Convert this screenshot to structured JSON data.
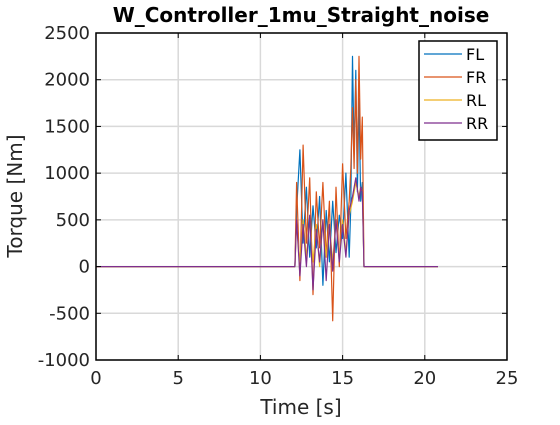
{
  "chart_data": {
    "type": "line",
    "title": "W_Controller_1mu_Straight_noise",
    "xlabel": "Time [s]",
    "ylabel": "Torque [Nm]",
    "xlim": [
      0,
      25
    ],
    "ylim": [
      -1000,
      2500
    ],
    "xticks": [
      0,
      5,
      10,
      15,
      20,
      25
    ],
    "yticks": [
      -1000,
      -500,
      0,
      500,
      1000,
      1500,
      2000,
      2500
    ],
    "xtick_labels": [
      "0",
      "5",
      "10",
      "15",
      "20",
      "25"
    ],
    "ytick_labels": [
      "-1000",
      "-500",
      "0",
      "500",
      "1000",
      "1500",
      "2000",
      "2500"
    ],
    "grid": true,
    "legend_position": "top-right",
    "series": [
      {
        "name": "FL",
        "color": "#0072BD",
        "x": [
          0,
          12.1,
          12.2,
          12.4,
          12.6,
          12.8,
          13.0,
          13.2,
          13.4,
          13.6,
          13.8,
          14.0,
          14.2,
          14.4,
          14.6,
          14.8,
          15.0,
          15.2,
          15.4,
          15.5,
          15.6,
          15.7,
          15.8,
          15.9,
          16.0,
          16.1,
          16.2,
          16.3,
          20.8
        ],
        "y": [
          0,
          0,
          600,
          1250,
          250,
          850,
          100,
          650,
          200,
          750,
          -200,
          600,
          50,
          700,
          150,
          550,
          300,
          1000,
          100,
          650,
          2250,
          1200,
          2100,
          800,
          1800,
          700,
          900,
          0,
          0
        ]
      },
      {
        "name": "FR",
        "color": "#D95319",
        "x": [
          0,
          12.1,
          12.2,
          12.4,
          12.6,
          12.8,
          13.0,
          13.2,
          13.4,
          13.6,
          13.8,
          14.0,
          14.2,
          14.4,
          14.6,
          14.8,
          15.0,
          15.2,
          15.4,
          15.5,
          15.6,
          15.7,
          15.8,
          15.9,
          16.0,
          16.1,
          16.2,
          16.3,
          20.8
        ],
        "y": [
          0,
          0,
          900,
          -150,
          1300,
          250,
          950,
          -300,
          800,
          200,
          900,
          100,
          700,
          -580,
          850,
          0,
          1100,
          300,
          700,
          1050,
          1700,
          1050,
          2000,
          1000,
          2250,
          1150,
          1600,
          0,
          0
        ]
      },
      {
        "name": "RL",
        "color": "#EDB120",
        "x": [
          0,
          12.1,
          12.2,
          12.4,
          12.6,
          12.8,
          13.0,
          13.2,
          13.4,
          13.6,
          13.8,
          14.0,
          14.2,
          14.4,
          14.6,
          14.8,
          15.0,
          15.2,
          15.4,
          15.6,
          15.8,
          16.0,
          16.1,
          16.2,
          16.3,
          20.8
        ],
        "y": [
          0,
          0,
          450,
          50,
          500,
          100,
          500,
          50,
          450,
          0,
          500,
          100,
          450,
          50,
          500,
          100,
          500,
          150,
          550,
          700,
          900,
          750,
          850,
          800,
          0,
          0
        ]
      },
      {
        "name": "RR",
        "color": "#7E2F8E",
        "x": [
          0,
          12.1,
          12.2,
          12.4,
          12.6,
          12.8,
          13.0,
          13.2,
          13.4,
          13.6,
          13.8,
          14.0,
          14.2,
          14.4,
          14.6,
          14.8,
          15.0,
          15.2,
          15.4,
          15.6,
          15.8,
          16.0,
          16.1,
          16.2,
          16.3,
          20.8
        ],
        "y": [
          0,
          0,
          500,
          -100,
          450,
          0,
          550,
          -250,
          400,
          50,
          500,
          -150,
          450,
          -50,
          500,
          50,
          450,
          100,
          600,
          750,
          950,
          700,
          850,
          800,
          0,
          0
        ]
      }
    ]
  }
}
